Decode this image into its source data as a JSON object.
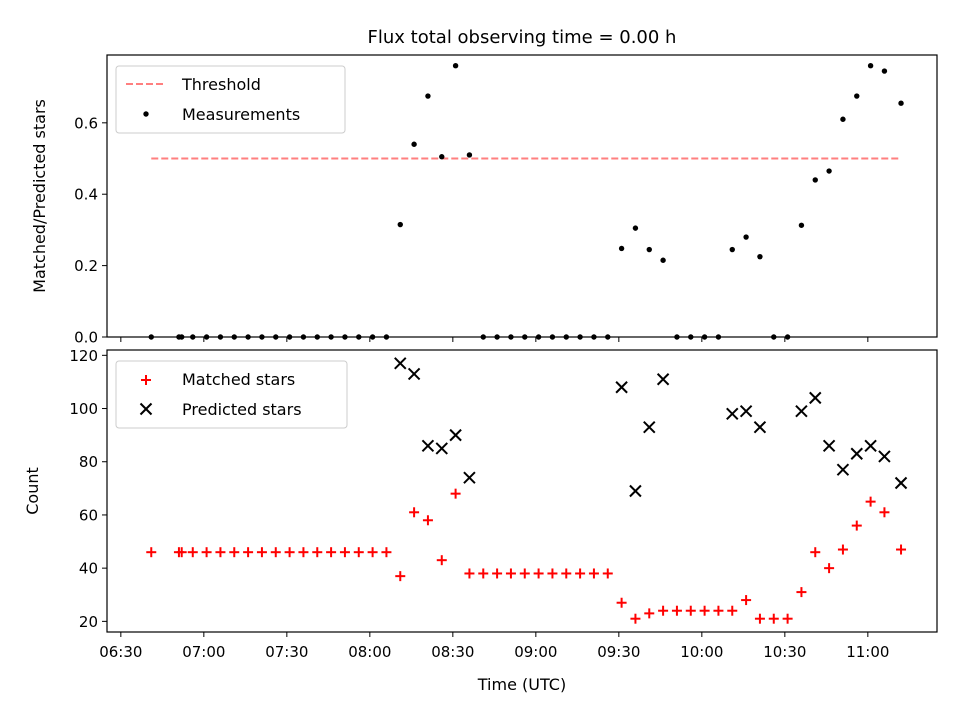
{
  "title": "Flux total observing time = 0.00 h",
  "chart_data": [
    {
      "type": "scatter",
      "ylabel": "Matched/Predicted stars",
      "xlim": [
        "06:25",
        "11:25"
      ],
      "ylim": [
        0,
        0.79
      ],
      "yticks": [
        "0.0",
        "0.2",
        "0.4",
        "0.6"
      ],
      "legend": {
        "placement": "top-left",
        "entries": [
          "Threshold",
          "Measurements"
        ]
      },
      "colors": {
        "threshold": "#ff7f7f",
        "measurements": "#000000"
      },
      "threshold": {
        "name": "Threshold",
        "x": [
          "06:41",
          "11:12"
        ],
        "value": 0.5
      },
      "series": [
        {
          "name": "Measurements",
          "points": [
            [
              "06:41",
              0
            ],
            [
              "06:51",
              0
            ],
            [
              "06:52",
              0
            ],
            [
              "06:56",
              0
            ],
            [
              "07:01",
              0
            ],
            [
              "07:06",
              0
            ],
            [
              "07:11",
              0
            ],
            [
              "07:16",
              0
            ],
            [
              "07:21",
              0
            ],
            [
              "07:26",
              0
            ],
            [
              "07:31",
              0
            ],
            [
              "07:36",
              0
            ],
            [
              "07:41",
              0
            ],
            [
              "07:46",
              0
            ],
            [
              "07:51",
              0
            ],
            [
              "07:56",
              0
            ],
            [
              "08:01",
              0
            ],
            [
              "08:06",
              0
            ],
            [
              "08:11",
              0.315
            ],
            [
              "08:16",
              0.54
            ],
            [
              "08:21",
              0.675
            ],
            [
              "08:26",
              0.505
            ],
            [
              "08:31",
              0.76
            ],
            [
              "08:36",
              0.51
            ],
            [
              "08:41",
              0
            ],
            [
              "08:46",
              0
            ],
            [
              "08:51",
              0
            ],
            [
              "08:56",
              0
            ],
            [
              "09:01",
              0
            ],
            [
              "09:06",
              0
            ],
            [
              "09:11",
              0
            ],
            [
              "09:16",
              0
            ],
            [
              "09:21",
              0
            ],
            [
              "09:26",
              0
            ],
            [
              "09:31",
              0.248
            ],
            [
              "09:36",
              0.305
            ],
            [
              "09:41",
              0.245
            ],
            [
              "09:46",
              0.215
            ],
            [
              "09:51",
              0
            ],
            [
              "09:56",
              0
            ],
            [
              "10:01",
              0
            ],
            [
              "10:06",
              0
            ],
            [
              "10:11",
              0.245
            ],
            [
              "10:16",
              0.28
            ],
            [
              "10:21",
              0.225
            ],
            [
              "10:26",
              0
            ],
            [
              "10:31",
              0
            ],
            [
              "10:36",
              0.313
            ],
            [
              "10:41",
              0.44
            ],
            [
              "10:46",
              0.465
            ],
            [
              "10:51",
              0.61
            ],
            [
              "10:56",
              0.675
            ],
            [
              "11:01",
              0.76
            ],
            [
              "11:06",
              0.745
            ],
            [
              "11:12",
              0.655
            ]
          ]
        }
      ]
    },
    {
      "type": "scatter",
      "xlabel": "Time (UTC)",
      "ylabel": "Count",
      "xlim": [
        "06:25",
        "11:25"
      ],
      "ylim": [
        16,
        122
      ],
      "xticks": [
        "06:30",
        "07:00",
        "07:30",
        "08:00",
        "08:30",
        "09:00",
        "09:30",
        "10:00",
        "10:30",
        "11:00"
      ],
      "yticks": [
        "20",
        "40",
        "60",
        "80",
        "100",
        "120"
      ],
      "legend": {
        "placement": "top-left",
        "entries": [
          "Matched stars",
          "Predicted stars"
        ]
      },
      "colors": {
        "matched": "#ff0000",
        "predicted": "#000000"
      },
      "series": [
        {
          "name": "Matched stars",
          "marker": "plus",
          "points": [
            [
              "06:41",
              46
            ],
            [
              "06:51",
              46
            ],
            [
              "06:52",
              46
            ],
            [
              "06:56",
              46
            ],
            [
              "07:01",
              46
            ],
            [
              "07:06",
              46
            ],
            [
              "07:11",
              46
            ],
            [
              "07:16",
              46
            ],
            [
              "07:21",
              46
            ],
            [
              "07:26",
              46
            ],
            [
              "07:31",
              46
            ],
            [
              "07:36",
              46
            ],
            [
              "07:41",
              46
            ],
            [
              "07:46",
              46
            ],
            [
              "07:51",
              46
            ],
            [
              "07:56",
              46
            ],
            [
              "08:01",
              46
            ],
            [
              "08:06",
              46
            ],
            [
              "08:11",
              37
            ],
            [
              "08:16",
              61
            ],
            [
              "08:21",
              58
            ],
            [
              "08:26",
              43
            ],
            [
              "08:31",
              68
            ],
            [
              "08:36",
              38
            ],
            [
              "08:41",
              38
            ],
            [
              "08:46",
              38
            ],
            [
              "08:51",
              38
            ],
            [
              "08:56",
              38
            ],
            [
              "09:01",
              38
            ],
            [
              "09:06",
              38
            ],
            [
              "09:11",
              38
            ],
            [
              "09:16",
              38
            ],
            [
              "09:21",
              38
            ],
            [
              "09:26",
              38
            ],
            [
              "09:31",
              27
            ],
            [
              "09:36",
              21
            ],
            [
              "09:41",
              23
            ],
            [
              "09:46",
              24
            ],
            [
              "09:51",
              24
            ],
            [
              "09:56",
              24
            ],
            [
              "10:01",
              24
            ],
            [
              "10:06",
              24
            ],
            [
              "10:11",
              24
            ],
            [
              "10:16",
              28
            ],
            [
              "10:21",
              21
            ],
            [
              "10:26",
              21
            ],
            [
              "10:31",
              21
            ],
            [
              "10:36",
              31
            ],
            [
              "10:41",
              46
            ],
            [
              "10:46",
              40
            ],
            [
              "10:51",
              47
            ],
            [
              "10:56",
              56
            ],
            [
              "11:01",
              65
            ],
            [
              "11:06",
              61
            ],
            [
              "11:12",
              47
            ]
          ]
        },
        {
          "name": "Predicted stars",
          "marker": "x",
          "points": [
            [
              "08:11",
              117
            ],
            [
              "08:16",
              113
            ],
            [
              "08:21",
              86
            ],
            [
              "08:26",
              85
            ],
            [
              "08:31",
              90
            ],
            [
              "08:36",
              74
            ],
            [
              "09:31",
              108
            ],
            [
              "09:36",
              69
            ],
            [
              "09:41",
              93
            ],
            [
              "09:46",
              111
            ],
            [
              "10:11",
              98
            ],
            [
              "10:16",
              99
            ],
            [
              "10:21",
              93
            ],
            [
              "10:36",
              99
            ],
            [
              "10:41",
              104
            ],
            [
              "10:46",
              86
            ],
            [
              "10:51",
              77
            ],
            [
              "10:56",
              83
            ],
            [
              "11:01",
              86
            ],
            [
              "11:06",
              82
            ],
            [
              "11:12",
              72
            ]
          ]
        }
      ]
    }
  ]
}
